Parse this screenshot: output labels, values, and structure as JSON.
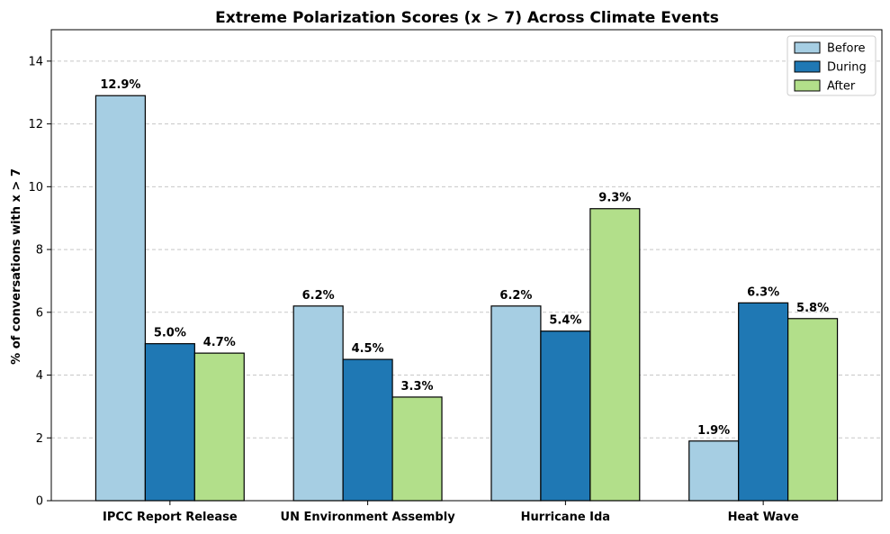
{
  "chart_data": {
    "type": "bar",
    "title": "Extreme Polarization Scores (x > 7) Across Climate Events",
    "xlabel": "",
    "ylabel": "% of conversations with x > 7",
    "categories": [
      "IPCC Report Release",
      "UN Environment Assembly",
      "Hurricane Ida",
      "Heat Wave"
    ],
    "series": [
      {
        "name": "Before",
        "color": "#a6cee3",
        "values": [
          12.9,
          6.2,
          6.2,
          1.9
        ]
      },
      {
        "name": "During",
        "color": "#1f78b4",
        "values": [
          5.0,
          4.5,
          5.4,
          6.3
        ]
      },
      {
        "name": "After",
        "color": "#b2df8a",
        "values": [
          4.7,
          3.3,
          9.3,
          5.8
        ]
      }
    ],
    "ylim": [
      0,
      15
    ],
    "yticks": [
      0,
      2,
      4,
      6,
      8,
      10,
      12,
      14
    ],
    "grid": "y-dashed",
    "legend_position": "top-right",
    "value_label_suffix": "%"
  }
}
